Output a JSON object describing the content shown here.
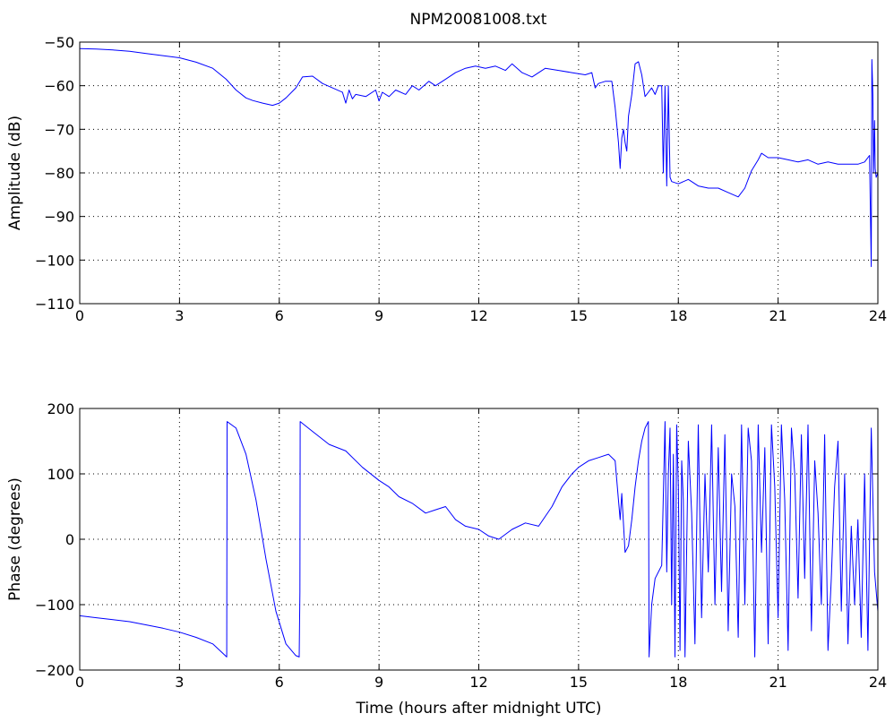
{
  "figure_title": "NPM20081008.txt",
  "colors": {
    "series": "#0000ff",
    "axes": "#000000",
    "background": "#ffffff"
  },
  "chart_data": [
    {
      "type": "line",
      "title": "NPM20081008.txt",
      "xlabel": "",
      "ylabel": "Amplitude (dB)",
      "xlim": [
        0,
        24
      ],
      "ylim": [
        -110,
        -50
      ],
      "xticks": [
        0,
        3,
        6,
        9,
        12,
        15,
        18,
        21,
        24
      ],
      "xtick_labels": [
        "0",
        "3",
        "6",
        "9",
        "12",
        "15",
        "18",
        "21",
        "24"
      ],
      "yticks": [
        -50,
        -60,
        -70,
        -80,
        -90,
        -100,
        -110
      ],
      "ytick_labels": [
        "−50",
        "−60",
        "−70",
        "−80",
        "−90",
        "−100",
        "−110"
      ],
      "grid": true,
      "series": [
        {
          "color": "#0000ff",
          "x": [
            0,
            0.5,
            1,
            1.5,
            2,
            2.5,
            3,
            3.5,
            4,
            4.4,
            4.7,
            5.0,
            5.2,
            5.5,
            5.8,
            6.0,
            6.2,
            6.5,
            6.7,
            7.0,
            7.3,
            7.6,
            7.9,
            8.0,
            8.1,
            8.2,
            8.3,
            8.6,
            8.9,
            9.0,
            9.1,
            9.3,
            9.5,
            9.8,
            10.0,
            10.2,
            10.5,
            10.7,
            11.0,
            11.3,
            11.6,
            11.9,
            12.2,
            12.5,
            12.8,
            13.0,
            13.3,
            13.6,
            14.0,
            14.4,
            14.8,
            15.2,
            15.4,
            15.5,
            15.6,
            15.8,
            16.0,
            16.1,
            16.2,
            16.25,
            16.3,
            16.35,
            16.4,
            16.45,
            16.5,
            16.6,
            16.7,
            16.8,
            16.9,
            17.0,
            17.1,
            17.2,
            17.3,
            17.4,
            17.5,
            17.55,
            17.6,
            17.65,
            17.7,
            17.75,
            17.8,
            18.0,
            18.3,
            18.6,
            18.9,
            19.2,
            19.5,
            19.8,
            20.0,
            20.2,
            20.4,
            20.5,
            20.7,
            21.0,
            21.3,
            21.6,
            21.9,
            22.2,
            22.5,
            22.8,
            23.1,
            23.4,
            23.6,
            23.75,
            23.8,
            23.82,
            23.85,
            23.87,
            23.9,
            23.92,
            23.95,
            24.0
          ],
          "y": [
            -51.5,
            -51.6,
            -51.8,
            -52.1,
            -52.6,
            -53.1,
            -53.6,
            -54.6,
            -56.0,
            -58.5,
            -61.0,
            -62.8,
            -63.4,
            -64.0,
            -64.5,
            -64.0,
            -62.8,
            -60.5,
            -58.0,
            -57.8,
            -59.5,
            -60.5,
            -61.5,
            -64.0,
            -61.0,
            -63.0,
            -62.0,
            -62.5,
            -61.0,
            -63.5,
            -61.5,
            -62.5,
            -61.0,
            -62.0,
            -60.0,
            -61.0,
            -59.0,
            -60.0,
            -58.5,
            -57.0,
            -56.0,
            -55.5,
            -56.0,
            -55.5,
            -56.5,
            -55.0,
            -57.0,
            -58.0,
            -56.0,
            -56.5,
            -57.0,
            -57.5,
            -57.0,
            -60.5,
            -59.5,
            -59.0,
            -59.0,
            -65.0,
            -73.0,
            -79.0,
            -72.0,
            -70.0,
            -73.0,
            -75.0,
            -67.0,
            -62.0,
            -55.0,
            -54.5,
            -57.5,
            -62.5,
            -61.5,
            -60.5,
            -62.0,
            -60.0,
            -60.0,
            -80.0,
            -60.0,
            -83.0,
            -60.0,
            -81.0,
            -82.0,
            -82.5,
            -81.5,
            -83.0,
            -83.5,
            -83.5,
            -84.5,
            -85.5,
            -83.5,
            -79.5,
            -77.0,
            -75.5,
            -76.5,
            -76.5,
            -77.0,
            -77.5,
            -77.0,
            -78.0,
            -77.5,
            -78.0,
            -78.0,
            -78.0,
            -77.5,
            -76.0,
            -101.5,
            -54.0,
            -62.0,
            -80.0,
            -68.0,
            -79.0,
            -81.0,
            -80.0
          ]
        }
      ]
    },
    {
      "type": "line",
      "title": "",
      "xlabel": "Time (hours after midnight UTC)",
      "ylabel": "Phase (degrees)",
      "xlim": [
        0,
        24
      ],
      "ylim": [
        -200,
        200
      ],
      "xticks": [
        0,
        3,
        6,
        9,
        12,
        15,
        18,
        21,
        24
      ],
      "xtick_labels": [
        "0",
        "3",
        "6",
        "9",
        "12",
        "15",
        "18",
        "21",
        "24"
      ],
      "yticks": [
        200,
        100,
        0,
        -100,
        -200
      ],
      "ytick_labels": [
        "200",
        "100",
        "0",
        "−100",
        "−200"
      ],
      "grid": true,
      "series": [
        {
          "color": "#0000ff",
          "x": [
            0,
            0.5,
            1.0,
            1.5,
            2.0,
            2.5,
            3.0,
            3.5,
            4.0,
            4.42,
            4.43,
            4.7,
            5.0,
            5.3,
            5.6,
            5.9,
            6.2,
            6.5,
            6.6,
            6.62,
            6.63,
            7.0,
            7.5,
            8.0,
            8.5,
            9.0,
            9.3,
            9.6,
            10.0,
            10.4,
            10.7,
            11.0,
            11.3,
            11.6,
            12.0,
            12.3,
            12.6,
            13.0,
            13.4,
            13.8,
            14.2,
            14.5,
            14.8,
            15.0,
            15.3,
            15.6,
            15.9,
            16.1,
            16.2,
            16.25,
            16.3,
            16.4,
            16.5,
            16.6,
            16.7,
            16.8,
            16.9,
            17.0,
            17.1,
            17.12,
            17.2,
            17.3,
            17.5,
            17.6,
            17.65,
            17.7,
            17.75,
            17.8,
            17.85,
            17.9,
            17.95,
            18.0,
            18.05,
            18.1,
            18.15,
            18.2,
            18.3,
            18.4,
            18.5,
            18.6,
            18.7,
            18.8,
            18.9,
            19.0,
            19.1,
            19.2,
            19.3,
            19.4,
            19.5,
            19.6,
            19.7,
            19.8,
            19.9,
            20.0,
            20.1,
            20.2,
            20.3,
            20.4,
            20.5,
            20.6,
            20.7,
            20.8,
            20.9,
            21.0,
            21.1,
            21.2,
            21.3,
            21.4,
            21.5,
            21.6,
            21.7,
            21.8,
            21.9,
            22.0,
            22.1,
            22.2,
            22.3,
            22.4,
            22.5,
            22.6,
            22.7,
            22.8,
            22.9,
            23.0,
            23.1,
            23.2,
            23.3,
            23.4,
            23.5,
            23.6,
            23.7,
            23.8,
            23.9,
            24.0
          ],
          "y": [
            -117,
            -120,
            -123,
            -126,
            -131,
            -136,
            -142,
            -150,
            -160,
            -180,
            180,
            170,
            130,
            60,
            -30,
            -110,
            -160,
            -178,
            -180,
            -80,
            180,
            165,
            145,
            135,
            110,
            90,
            80,
            65,
            55,
            40,
            45,
            50,
            30,
            20,
            15,
            5,
            0,
            15,
            25,
            20,
            50,
            80,
            100,
            110,
            120,
            125,
            130,
            120,
            60,
            30,
            70,
            -20,
            -10,
            30,
            80,
            120,
            150,
            170,
            180,
            -180,
            -100,
            -60,
            -40,
            180,
            -50,
            100,
            170,
            -100,
            130,
            -180,
            175,
            80,
            -170,
            120,
            60,
            -180,
            150,
            40,
            -160,
            175,
            -120,
            100,
            -50,
            175,
            -100,
            140,
            -80,
            160,
            -140,
            100,
            50,
            -150,
            175,
            -100,
            170,
            120,
            -180,
            175,
            -20,
            140,
            -160,
            175,
            80,
            -120,
            175,
            60,
            -170,
            170,
            100,
            -90,
            160,
            -60,
            175,
            -140,
            120,
            40,
            -100,
            160,
            -170,
            -60,
            80,
            150,
            -110,
            100,
            -160,
            20,
            -100,
            30,
            -150,
            100,
            -170,
            170,
            -50,
            -110
          ]
        }
      ]
    }
  ]
}
